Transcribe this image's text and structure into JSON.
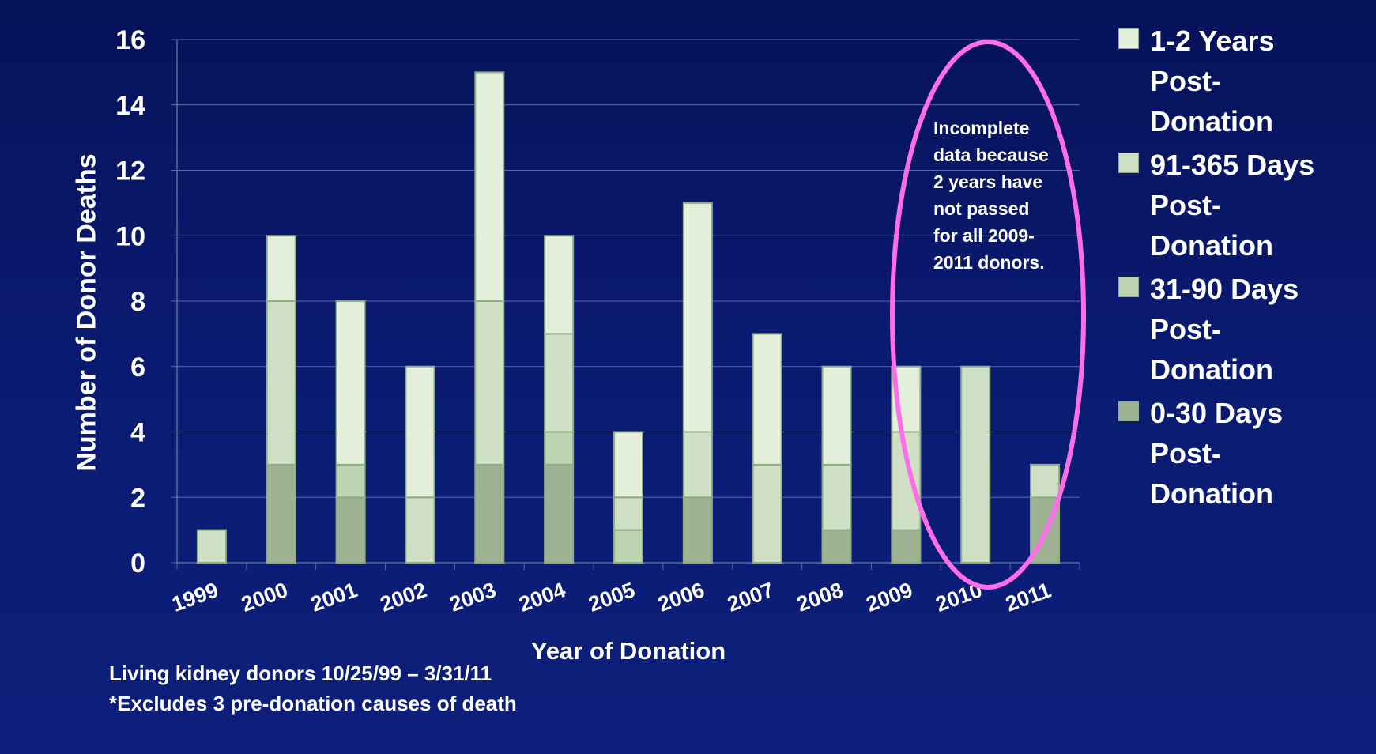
{
  "chart_data": {
    "type": "bar",
    "stacked": true,
    "categories": [
      "1999",
      "2000",
      "2001",
      "2002",
      "2003",
      "2004",
      "2005",
      "2006",
      "2007",
      "2008",
      "2009",
      "2010",
      "2011"
    ],
    "series": [
      {
        "name": "0-30 Days Post-Donation",
        "color": "#9fb293",
        "values": [
          0,
          3,
          2,
          0,
          3,
          3,
          0,
          2,
          0,
          1,
          1,
          0,
          2
        ]
      },
      {
        "name": "31-90 Days Post-Donation",
        "color": "#bcd4b0",
        "values": [
          0,
          0,
          1,
          0,
          0,
          1,
          1,
          0,
          0,
          0,
          0,
          0,
          0
        ]
      },
      {
        "name": "91-365 Days Post-Donation",
        "color": "#cfe0c5",
        "values": [
          1,
          5,
          0,
          2,
          5,
          3,
          1,
          2,
          3,
          2,
          3,
          6,
          1
        ]
      },
      {
        "name": "1-2 Years Post-Donation",
        "color": "#e4efdc",
        "values": [
          0,
          2,
          5,
          4,
          7,
          3,
          2,
          7,
          4,
          3,
          2,
          0,
          0
        ]
      }
    ],
    "ylim": [
      0,
      16
    ],
    "yticks": [
      "0",
      "2",
      "4",
      "6",
      "8",
      "10",
      "12",
      "14",
      "16"
    ],
    "ylabel": "Number of Donor Deaths",
    "xlabel": "Year of Donation",
    "grid": true,
    "legend": {
      "position": "right",
      "items": [
        {
          "label": "1-2 Years Post-Donation",
          "color": "#e4efdc"
        },
        {
          "label": "91-365 Days Post-Donation",
          "color": "#cfe0c5"
        },
        {
          "label": "31-90 Days Post-Donation",
          "color": "#bcd4b0"
        },
        {
          "label": "0-30 Days Post-Donation",
          "color": "#9fb293"
        }
      ]
    },
    "annotation": {
      "text": "Incomplete data because 2 years have not passed for all 2009-2011 donors.",
      "highlight_color": "#ff6ee8"
    }
  },
  "footnotes": {
    "line1": "Living kidney donors 10/25/99 – 3/31/11",
    "line2": "*Excludes 3 pre-donation causes of death"
  },
  "colors": {
    "background": "#0a1a70",
    "gridline": "#5a6a9a",
    "text": "#ffffff",
    "bar_border": "#8fae86"
  }
}
